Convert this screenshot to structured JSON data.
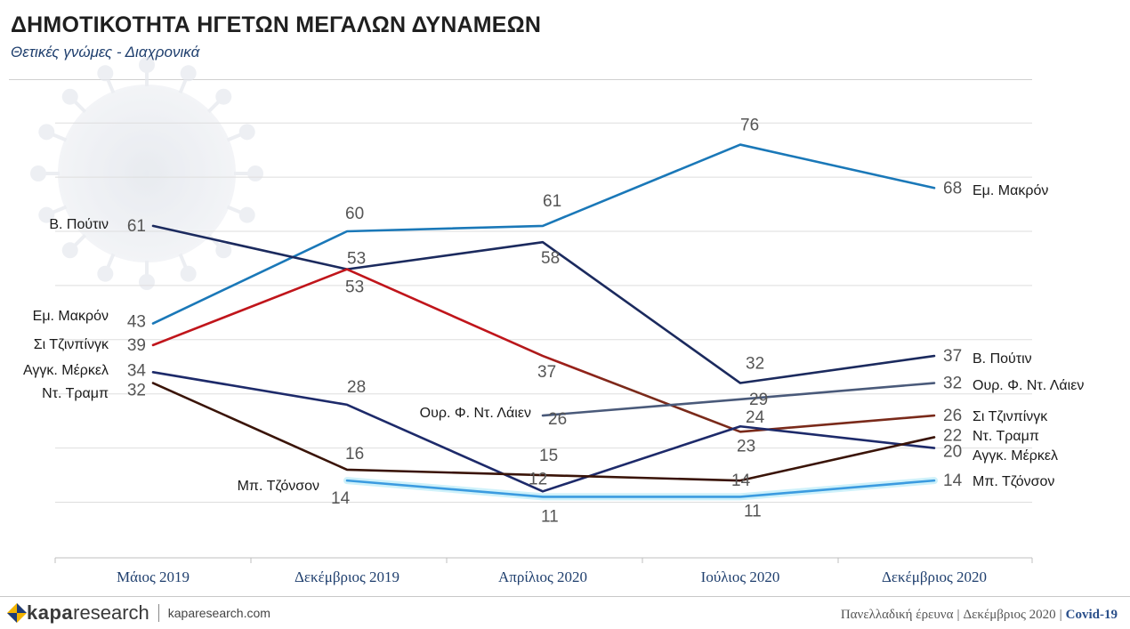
{
  "header": {
    "title": "ΔΗΜΟΤΙΚΟΤΗΤΑ ΗΓΕΤΩΝ ΜΕΓΑΛΩΝ ΔΥΝΑΜΕΩΝ",
    "subtitle": "Θετικές γνώμες - Διαχρονικά"
  },
  "footer": {
    "brand_a": "kapa",
    "brand_b": "research",
    "site": "kaparesearch.com",
    "survey": "Πανελλαδική έρευνα",
    "date": "Δεκέμβριος 2020",
    "tag": "Covid-19",
    "divider": "|"
  },
  "chart_data": {
    "type": "line",
    "categories": [
      "Μάιος 2019",
      "Δεκέμβριος 2019",
      "Απρίλιος 2020",
      "Ιούλιος 2020",
      "Δεκέμβριος 2020"
    ],
    "ylim": [
      0,
      80
    ],
    "grid": true,
    "series": [
      {
        "name": "Εμ. Μακρόν",
        "color": "#1a78b8",
        "values": [
          43,
          60,
          61,
          76,
          68
        ]
      },
      {
        "name": "Β. Πούτιν",
        "color": "#1b2a5e",
        "values": [
          61,
          53,
          58,
          32,
          37
        ]
      },
      {
        "name": "Σι Τζινπίνγκ",
        "color": "#7a2a1a",
        "gradient": [
          "#c0151b",
          "#7a2a1a"
        ],
        "values": [
          39,
          53,
          37,
          23,
          26
        ]
      },
      {
        "name": "Αγγκ. Μέρκελ",
        "color": "#1d2a6a",
        "values": [
          34,
          28,
          12,
          24,
          20
        ]
      },
      {
        "name": "Ντ. Τραμπ",
        "color": "#3a1408",
        "values": [
          32,
          16,
          15,
          14,
          22
        ]
      },
      {
        "name": "Μπ. Τζόνσον",
        "color": "#3b9be0",
        "values": [
          null,
          14,
          11,
          11,
          14
        ]
      },
      {
        "name": "Ουρ. Φ. Ντ. Λάιεν",
        "color": "#4a5a7a",
        "values": [
          null,
          null,
          26,
          29,
          32
        ]
      }
    ]
  }
}
